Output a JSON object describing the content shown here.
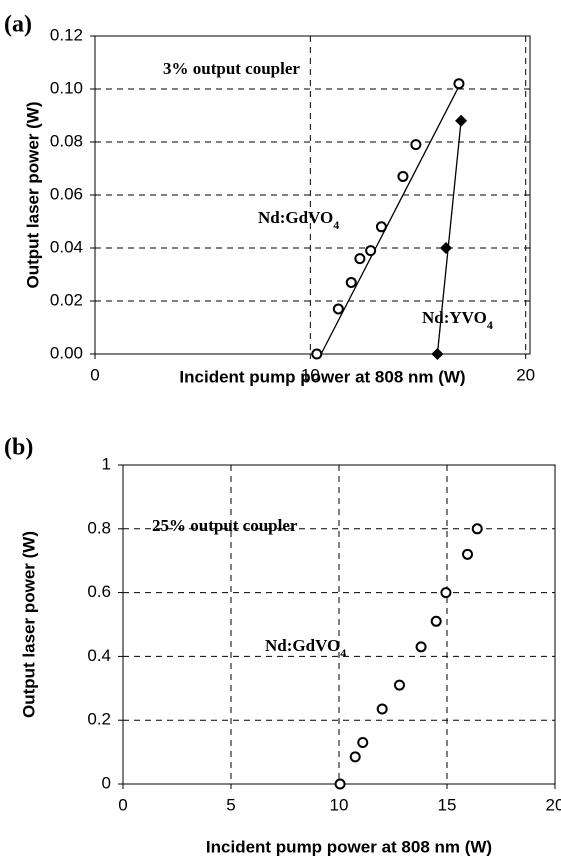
{
  "chart_data": [
    {
      "type": "scatter",
      "panel_label": "(a)",
      "x_label": "Incident pump power at 808 nm (W)",
      "y_label": "Output laser power (W)",
      "xlim": [
        0,
        20.2
      ],
      "xticks": [
        0,
        10,
        20
      ],
      "ylim": [
        0,
        0.12
      ],
      "yticks": [
        {
          "value": 0,
          "label": "0.00"
        },
        0.02,
        0.04,
        0.06,
        0.08,
        {
          "value": 0.1,
          "label": "0.10"
        },
        0.12
      ],
      "grid": true,
      "annotations": [
        "3% output coupler",
        "Nd:GdVO4",
        "Nd:YVO4"
      ],
      "series": [
        {
          "marker": "circle",
          "color": "#000000",
          "x": [
            10.3,
            11.3,
            11.9,
            12.3,
            12.8,
            13.3,
            14.3,
            14.9,
            16.9
          ],
          "values": [
            0,
            0.017,
            0.027,
            0.036,
            0.039,
            0.048,
            0.067,
            0.079,
            0.102
          ]
        },
        {
          "marker": "diamond",
          "color": "#000000",
          "x": [
            15.9,
            16.3,
            17.0
          ],
          "values": [
            0,
            0.04,
            0.088
          ]
        }
      ],
      "fit_lines": [
        {
          "x": [
            10.5,
            16.9
          ],
          "values": [
            0,
            0.101
          ]
        },
        {
          "x": [
            15.9,
            17.0
          ],
          "values": [
            0,
            0.088
          ]
        }
      ]
    },
    {
      "type": "scatter",
      "panel_label": "(b)",
      "x_label": "Incident pump power at 808 nm (W)",
      "y_label": "Output laser power (W)",
      "xlim": [
        0,
        20
      ],
      "xticks": [
        0,
        5,
        10,
        15,
        20
      ],
      "ylim": [
        0,
        1
      ],
      "yticks": [
        0,
        0.2,
        0.4,
        0.6,
        0.8,
        1
      ],
      "grid": true,
      "annotations": [
        "25% output coupler",
        "Nd:GdVO4"
      ],
      "series": [
        {
          "marker": "circle",
          "color": "#000000",
          "x": [
            10.05,
            10.75,
            11.1,
            12.0,
            12.8,
            13.8,
            14.5,
            14.95,
            15.95,
            16.4
          ],
          "values": [
            0,
            0.085,
            0.13,
            0.235,
            0.31,
            0.43,
            0.51,
            0.6,
            0.72,
            0.8
          ]
        }
      ]
    }
  ]
}
